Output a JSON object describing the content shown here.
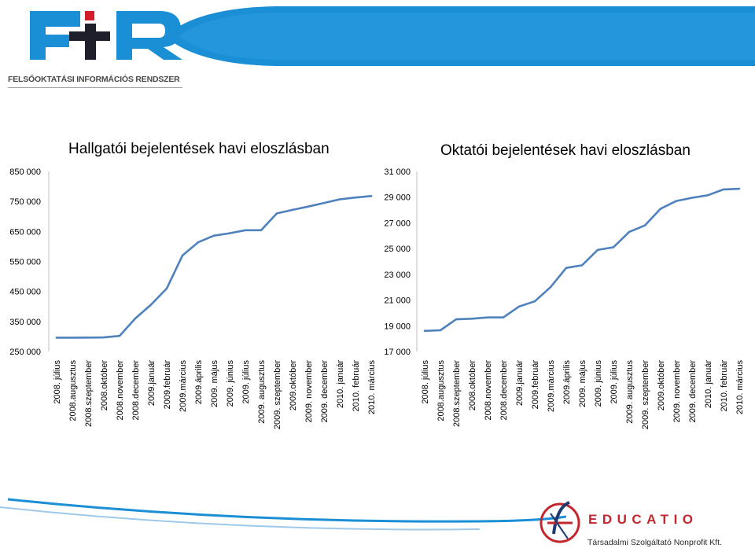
{
  "header": {
    "logo_letters": "FIR",
    "logo_subtitle": "FELSŐOKTATÁSI INFORMÁCIÓS RENDSZER"
  },
  "footer": {
    "brand": "EDUCATIO",
    "brand_subtitle": "Társadalmi Szolgáltató Nonprofit Kft."
  },
  "colors": {
    "series": "#4f81bd",
    "logo_blue": "#1a8fd6",
    "logo_dark": "#1f1f2b",
    "logo_red": "#d21e2b",
    "accent_red": "#c4262e"
  },
  "chart_data": [
    {
      "type": "line",
      "title": "Hallgatói bejelentések havi eloszlásban",
      "categories": [
        "2008. július",
        "2008.augusztus",
        "2008.szeptember",
        "2008.október",
        "2008.november",
        "2008.december",
        "2009.január",
        "2009.február",
        "2009.március",
        "2009.április",
        "2009. május",
        "2009. június",
        "2009. július",
        "2009. augusztus",
        "2009. szeptember",
        "2009.október",
        "2009. november",
        "2009. december",
        "2010. január",
        "2010. február",
        "2010. március"
      ],
      "values": [
        296000,
        296000,
        296500,
        297000,
        302000,
        360000,
        406000,
        460000,
        570000,
        614000,
        636000,
        644000,
        654000,
        654000,
        710000,
        722000,
        733000,
        745000,
        757000,
        763000,
        768000
      ],
      "ylim": [
        250000,
        850000
      ],
      "yticks": [
        250000,
        350000,
        450000,
        550000,
        650000,
        750000,
        850000
      ],
      "ytick_labels": [
        "250 000",
        "350 000",
        "450 000",
        "550 000",
        "650 000",
        "750 000",
        "850 000"
      ],
      "grid": false,
      "legend": "none"
    },
    {
      "type": "line",
      "title": "Oktatói bejelentések havi eloszlásban",
      "categories": [
        "2008. július",
        "2008.augusztus",
        "2008.szeptember",
        "2008.október",
        "2008.november",
        "2008.december",
        "2009.január",
        "2009.február",
        "2009.március",
        "2009.április",
        "2009. május",
        "2009. június",
        "2009. július",
        "2009. augusztus",
        "2009. szeptember",
        "2009.október",
        "2009. november",
        "2009. december",
        "2010. január",
        "2010. február",
        "2010. március"
      ],
      "values": [
        18600,
        18650,
        19500,
        19550,
        19650,
        19650,
        20500,
        20900,
        22000,
        23500,
        23700,
        24900,
        25100,
        26300,
        26800,
        28100,
        28700,
        28950,
        29150,
        29600,
        29650
      ],
      "ylim": [
        17000,
        31000
      ],
      "yticks": [
        17000,
        19000,
        21000,
        23000,
        25000,
        27000,
        29000,
        31000
      ],
      "ytick_labels": [
        "17 000",
        "19 000",
        "21 000",
        "23 000",
        "25 000",
        "27 000",
        "29 000",
        "31 000"
      ],
      "grid": false,
      "legend": "none"
    }
  ]
}
